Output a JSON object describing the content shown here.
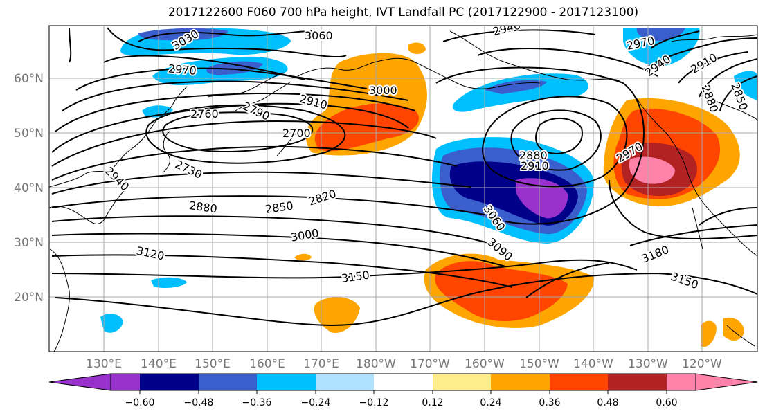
{
  "title": "2017122600 F060 700 hPa height, IVT Landfall PC (2017122900 - 2017123100)",
  "lat_labels": [
    "60°N",
    "50°N",
    "40°N",
    "30°N",
    "20°N"
  ],
  "lon_labels": [
    "130°E",
    "140°E",
    "150°E",
    "160°E",
    "170°E",
    "180°W",
    "170°W",
    "160°W",
    "150°W",
    "140°W",
    "130°W",
    "120°W"
  ],
  "colorbar": {
    "ticks": [
      "−0.60",
      "−0.48",
      "−0.36",
      "−0.24",
      "−0.12",
      "0.12",
      "0.24",
      "0.36",
      "0.48",
      "0.60"
    ],
    "colors": [
      "#9932cc",
      "#00008b",
      "#3a5fcd",
      "#00bfff",
      "#b0e2ff",
      "#ffffff",
      "#ffec8b",
      "#ffa500",
      "#ff4500",
      "#b22222",
      "#ff82ab"
    ]
  },
  "contour_labels": [
    "3030",
    "3060",
    "2940",
    "2970",
    "2970",
    "2940",
    "2910",
    "2850",
    "2880",
    "3000",
    "2910",
    "2760",
    "2790",
    "2700",
    "2880",
    "2910",
    "2970",
    "2730",
    "2940",
    "2820",
    "2850",
    "2880",
    "3000",
    "3060",
    "3090",
    "3120",
    "3150",
    "3180",
    "3150"
  ]
}
